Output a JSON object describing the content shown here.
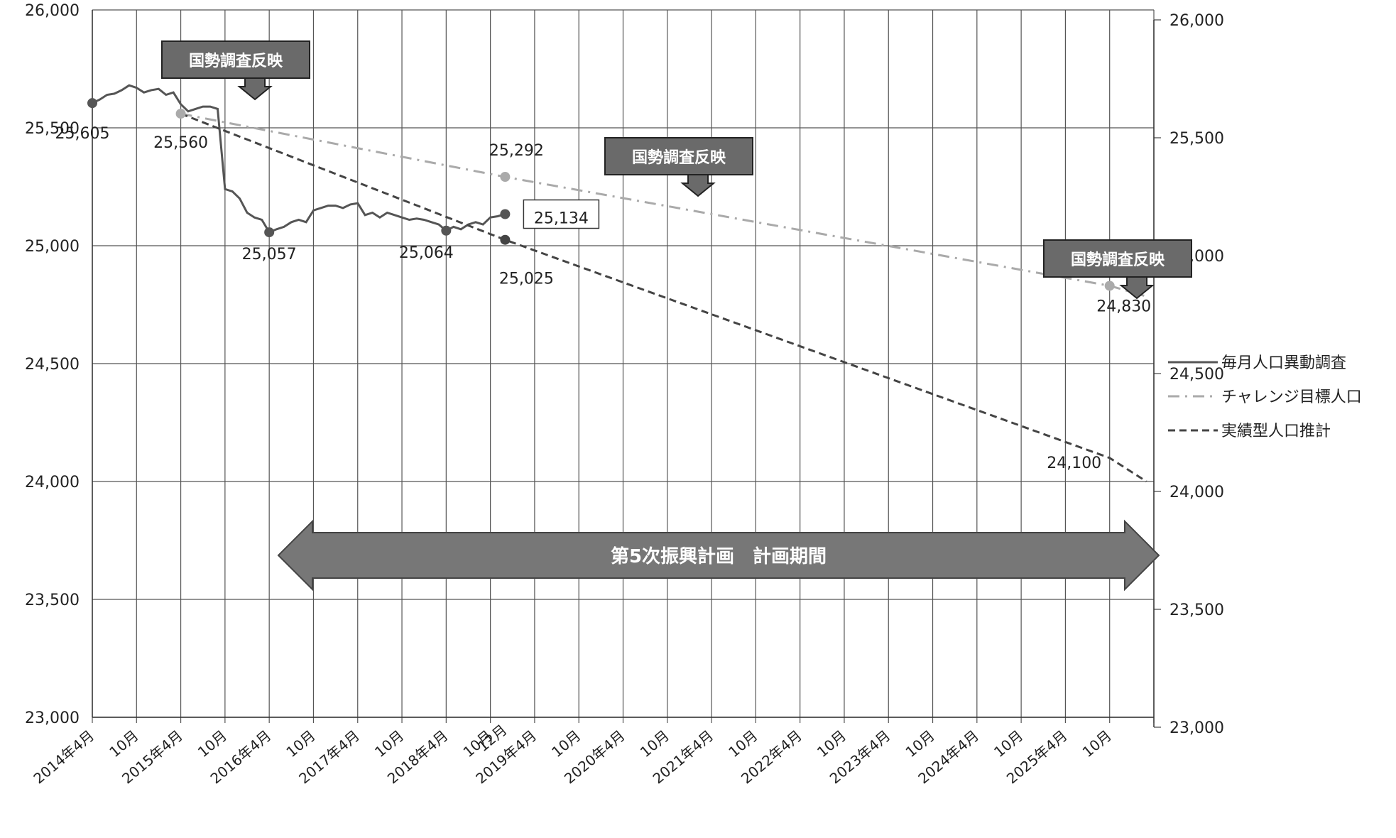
{
  "chart_data": {
    "type": "line",
    "title": "",
    "xlabel": "",
    "ylabel": "",
    "ylim": [
      23000,
      26000
    ],
    "y_right_ticks": [
      "23,000",
      "23,500",
      "24,000",
      "24,500",
      "25,000",
      "25,500",
      "26,000"
    ],
    "y_left_ticks": [
      "23,000",
      "23,500",
      "24,000",
      "24,500",
      "25,000",
      "25,500",
      "26,000"
    ],
    "x_tick_labels": [
      "2014年4月",
      "10月",
      "2015年4月",
      "10月",
      "2016年4月",
      "10月",
      "2017年4月",
      "10月",
      "2018年4月",
      "10月",
      "12月",
      "2019年4月",
      "10月",
      "2020年4月",
      "10月",
      "2021年4月",
      "10月",
      "2022年4月",
      "10月",
      "2023年4月",
      "10月",
      "2024年4月",
      "10月",
      "2025年4月",
      "10月"
    ],
    "x_range_months": [
      "2014-04",
      "2026-04"
    ],
    "grid": true,
    "legend_position": "right",
    "series": [
      {
        "name": "毎月人口異動調査",
        "style": "solid",
        "color": "#555555",
        "points": [
          [
            "2014-04",
            25605
          ],
          [
            "2014-05",
            25620
          ],
          [
            "2014-06",
            25640
          ],
          [
            "2014-07",
            25645
          ],
          [
            "2014-08",
            25660
          ],
          [
            "2014-09",
            25680
          ],
          [
            "2014-10",
            25670
          ],
          [
            "2014-11",
            25650
          ],
          [
            "2014-12",
            25660
          ],
          [
            "2015-01",
            25665
          ],
          [
            "2015-02",
            25640
          ],
          [
            "2015-03",
            25650
          ],
          [
            "2015-04",
            25600
          ],
          [
            "2015-05",
            25570
          ],
          [
            "2015-06",
            25580
          ],
          [
            "2015-07",
            25590
          ],
          [
            "2015-08",
            25590
          ],
          [
            "2015-09",
            25580
          ],
          [
            "2015-10",
            25240
          ],
          [
            "2015-11",
            25230
          ],
          [
            "2015-12",
            25200
          ],
          [
            "2016-01",
            25140
          ],
          [
            "2016-02",
            25120
          ],
          [
            "2016-03",
            25110
          ],
          [
            "2016-04",
            25057
          ],
          [
            "2016-05",
            25070
          ],
          [
            "2016-06",
            25080
          ],
          [
            "2016-07",
            25100
          ],
          [
            "2016-08",
            25110
          ],
          [
            "2016-09",
            25100
          ],
          [
            "2016-10",
            25150
          ],
          [
            "2016-11",
            25160
          ],
          [
            "2016-12",
            25170
          ],
          [
            "2017-01",
            25170
          ],
          [
            "2017-02",
            25160
          ],
          [
            "2017-03",
            25175
          ],
          [
            "2017-04",
            25180
          ],
          [
            "2017-05",
            25130
          ],
          [
            "2017-06",
            25140
          ],
          [
            "2017-07",
            25120
          ],
          [
            "2017-08",
            25140
          ],
          [
            "2017-09",
            25130
          ],
          [
            "2017-10",
            25120
          ],
          [
            "2017-11",
            25110
          ],
          [
            "2017-12",
            25115
          ],
          [
            "2018-01",
            25110
          ],
          [
            "2018-02",
            25100
          ],
          [
            "2018-03",
            25090
          ],
          [
            "2018-04",
            25064
          ],
          [
            "2018-05",
            25080
          ],
          [
            "2018-06",
            25070
          ],
          [
            "2018-07",
            25090
          ],
          [
            "2018-08",
            25100
          ],
          [
            "2018-09",
            25090
          ],
          [
            "2018-10",
            25120
          ],
          [
            "2018-11",
            25125
          ],
          [
            "2018-12",
            25134
          ]
        ]
      },
      {
        "name": "チャレンジ目標人口",
        "style": "dash-dot",
        "color": "#aaaaaa",
        "points": [
          [
            "2015-04",
            25560
          ],
          [
            "2018-12",
            25292
          ],
          [
            "2025-10",
            24830
          ],
          [
            "2026-03",
            24785
          ]
        ]
      },
      {
        "name": "実績型人口推計",
        "style": "dashed",
        "color": "#444444",
        "points": [
          [
            "2015-04",
            25560
          ],
          [
            "2018-12",
            25025
          ],
          [
            "2025-10",
            24100
          ],
          [
            "2026-03",
            24000
          ]
        ]
      }
    ],
    "markers": [
      {
        "series": "毎月人口異動調査",
        "x": "2014-04",
        "y": 25605,
        "label": "25,605"
      },
      {
        "series": "毎月人口異動調査",
        "x": "2016-04",
        "y": 25057,
        "label": "25,057"
      },
      {
        "series": "毎月人口異動調査",
        "x": "2018-04",
        "y": 25064,
        "label": "25,064"
      },
      {
        "series": "毎月人口異動調査",
        "x": "2018-12",
        "y": 25134,
        "label": "25,134",
        "boxed": true
      },
      {
        "series": "チャレンジ目標人口",
        "x": "2015-04",
        "y": 25560,
        "label": "25,560"
      },
      {
        "series": "チャレンジ目標人口",
        "x": "2018-12",
        "y": 25292,
        "label": "25,292"
      },
      {
        "series": "チャレンジ目標人口",
        "x": "2025-10",
        "y": 24830,
        "label": "24,830"
      },
      {
        "series": "実績型人口推計",
        "x": "2018-12",
        "y": 25025,
        "label": "25,025"
      },
      {
        "series": "実績型人口推計",
        "x": "2025-10",
        "y": 24100,
        "label": "24,100",
        "nomarker": true
      }
    ],
    "callouts": [
      {
        "text": "国勢調査反映",
        "at": "2015-10"
      },
      {
        "text": "国勢調査反映",
        "at": "2020-10"
      },
      {
        "text": "国勢調査反映",
        "at": "2025-10"
      }
    ],
    "period_arrow": {
      "text": "第5次振興計画　計画期間",
      "from": "2016-04",
      "to": "2026-04"
    }
  }
}
